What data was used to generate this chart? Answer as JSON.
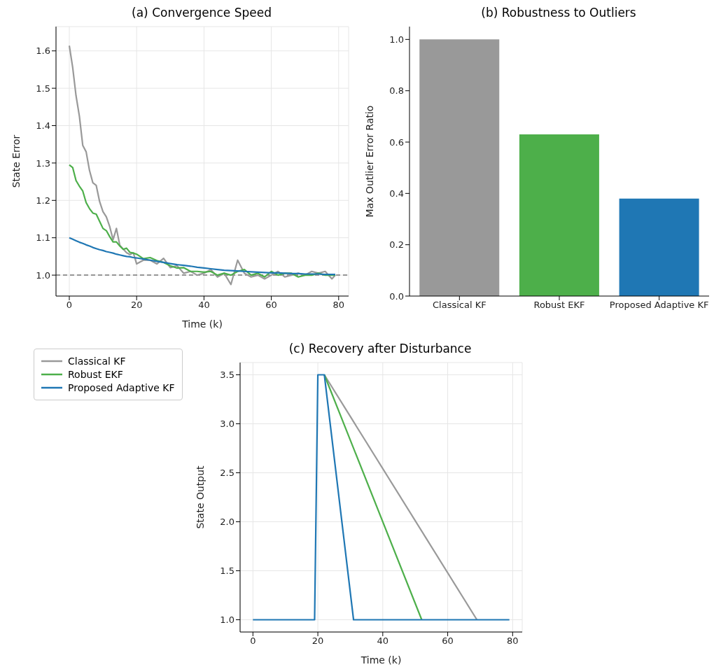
{
  "chart_data": [
    {
      "type": "line",
      "title": "(a) Convergence Speed",
      "xlabel": "Time (k)",
      "ylabel": "State Error",
      "x": [
        0,
        1,
        2,
        3,
        4,
        5,
        6,
        7,
        8,
        9,
        10,
        11,
        12,
        13,
        14,
        15,
        16,
        17,
        18,
        19,
        20,
        22,
        24,
        26,
        28,
        30,
        32,
        34,
        36,
        38,
        40,
        42,
        44,
        46,
        48,
        50,
        52,
        54,
        56,
        58,
        60,
        62,
        64,
        66,
        68,
        70,
        72,
        74,
        76,
        78,
        79
      ],
      "series": [
        {
          "color": "#999999",
          "values": [
            1.614,
            1.556,
            1.48,
            1.425,
            1.347,
            1.33,
            1.28,
            1.247,
            1.24,
            1.197,
            1.17,
            1.156,
            1.13,
            1.095,
            1.125,
            1.08,
            1.07,
            1.06,
            1.055,
            1.06,
            1.03,
            1.04,
            1.04,
            1.03,
            1.045,
            1.02,
            1.025,
            1.005,
            1.01,
            1.0,
            1.005,
            1.015,
            0.995,
            1.005,
            0.975,
            1.04,
            1.005,
            0.995,
            1.0,
            0.99,
            1.0,
            1.01,
            0.995,
            1.0,
            1.005,
            1.0,
            1.01,
            1.005,
            1.01,
            0.99,
            1.0
          ]
        },
        {
          "color": "#4daf4a",
          "values": [
            1.295,
            1.288,
            1.253,
            1.238,
            1.225,
            1.194,
            1.178,
            1.166,
            1.163,
            1.144,
            1.125,
            1.119,
            1.103,
            1.089,
            1.089,
            1.078,
            1.069,
            1.072,
            1.061,
            1.059,
            1.056,
            1.044,
            1.047,
            1.039,
            1.034,
            1.025,
            1.019,
            1.02,
            1.01,
            1.01,
            1.008,
            1.01,
            1.0,
            1.005,
            1.0,
            1.01,
            1.015,
            1.0,
            1.005,
            0.995,
            1.01,
            1.0,
            1.005,
            1.005,
            0.995,
            1.0,
            1.0,
            1.005,
            1.0,
            1.0,
            1.0
          ]
        },
        {
          "color": "#1f77b4",
          "values": [
            1.1,
            1.096,
            1.092,
            1.088,
            1.085,
            1.081,
            1.078,
            1.074,
            1.071,
            1.068,
            1.066,
            1.063,
            1.061,
            1.059,
            1.056,
            1.054,
            1.052,
            1.05,
            1.049,
            1.047,
            1.046,
            1.043,
            1.04,
            1.037,
            1.034,
            1.031,
            1.028,
            1.026,
            1.024,
            1.021,
            1.019,
            1.017,
            1.015,
            1.013,
            1.012,
            1.011,
            1.01,
            1.009,
            1.008,
            1.007,
            1.006,
            1.006,
            1.005,
            1.004,
            1.004,
            1.003,
            1.003,
            1.003,
            1.002,
            1.002,
            1.002
          ]
        }
      ],
      "ref_lines": [
        {
          "axis": "y",
          "value": 1.0,
          "color": "#777777",
          "line_style": "dashed"
        }
      ],
      "xlim": [
        -3.95,
        82.95
      ],
      "xticks": [
        0,
        20,
        40,
        60,
        80
      ],
      "ylim": [
        0.944,
        1.665
      ],
      "yticks": [
        {
          "value": 1.0,
          "label": "1.0"
        },
        1.1,
        1.2,
        1.3,
        1.4,
        1.5,
        1.6
      ],
      "grid": true,
      "legend": false,
      "marker": "none",
      "line_style": "solid"
    },
    {
      "type": "bar",
      "title": "(b) Robustness to Outliers",
      "ylabel": "Max Outlier Error Ratio",
      "categories": [
        "Classical KF",
        "Robust EKF",
        "Proposed Adaptive KF"
      ],
      "values": [
        1.0,
        0.63,
        0.38
      ],
      "colors": [
        "#999999",
        "#4daf4a",
        "#1f77b4"
      ],
      "ylim": [
        0,
        1.05
      ],
      "yticks": [
        {
          "value": 0,
          "label": "0.0"
        },
        0.2,
        0.4,
        0.6,
        0.8,
        {
          "value": 1.0,
          "label": "1.0"
        }
      ],
      "grid": false,
      "legend": false
    },
    {
      "type": "line",
      "title": "(c) Recovery after Disturbance",
      "xlabel": "Time (k)",
      "ylabel": "State Output",
      "series": [
        {
          "name": "Classical KF",
          "color": "#999999",
          "x": [
            22,
            69
          ],
          "values": [
            3.5,
            1.0
          ]
        },
        {
          "name": "Robust EKF",
          "color": "#4daf4a",
          "x": [
            22,
            52
          ],
          "values": [
            3.5,
            1.0
          ]
        },
        {
          "name": "Proposed Adaptive KF",
          "color": "#1f77b4",
          "x": [
            0,
            19,
            20,
            22,
            31,
            79
          ],
          "values": [
            1.0,
            1.0,
            3.5,
            3.5,
            1.0,
            1.0
          ]
        }
      ],
      "xlim": [
        -3.95,
        82.95
      ],
      "xticks": [
        0,
        20,
        40,
        60,
        80
      ],
      "ylim": [
        0.875,
        3.625
      ],
      "yticks": [
        {
          "value": 1.0,
          "label": "1.0"
        },
        1.5,
        {
          "value": 2.0,
          "label": "2.0"
        },
        2.5,
        {
          "value": 3.0,
          "label": "3.0"
        },
        3.5
      ],
      "grid": true,
      "legend": "left",
      "marker": "none",
      "line_style": "solid"
    }
  ]
}
